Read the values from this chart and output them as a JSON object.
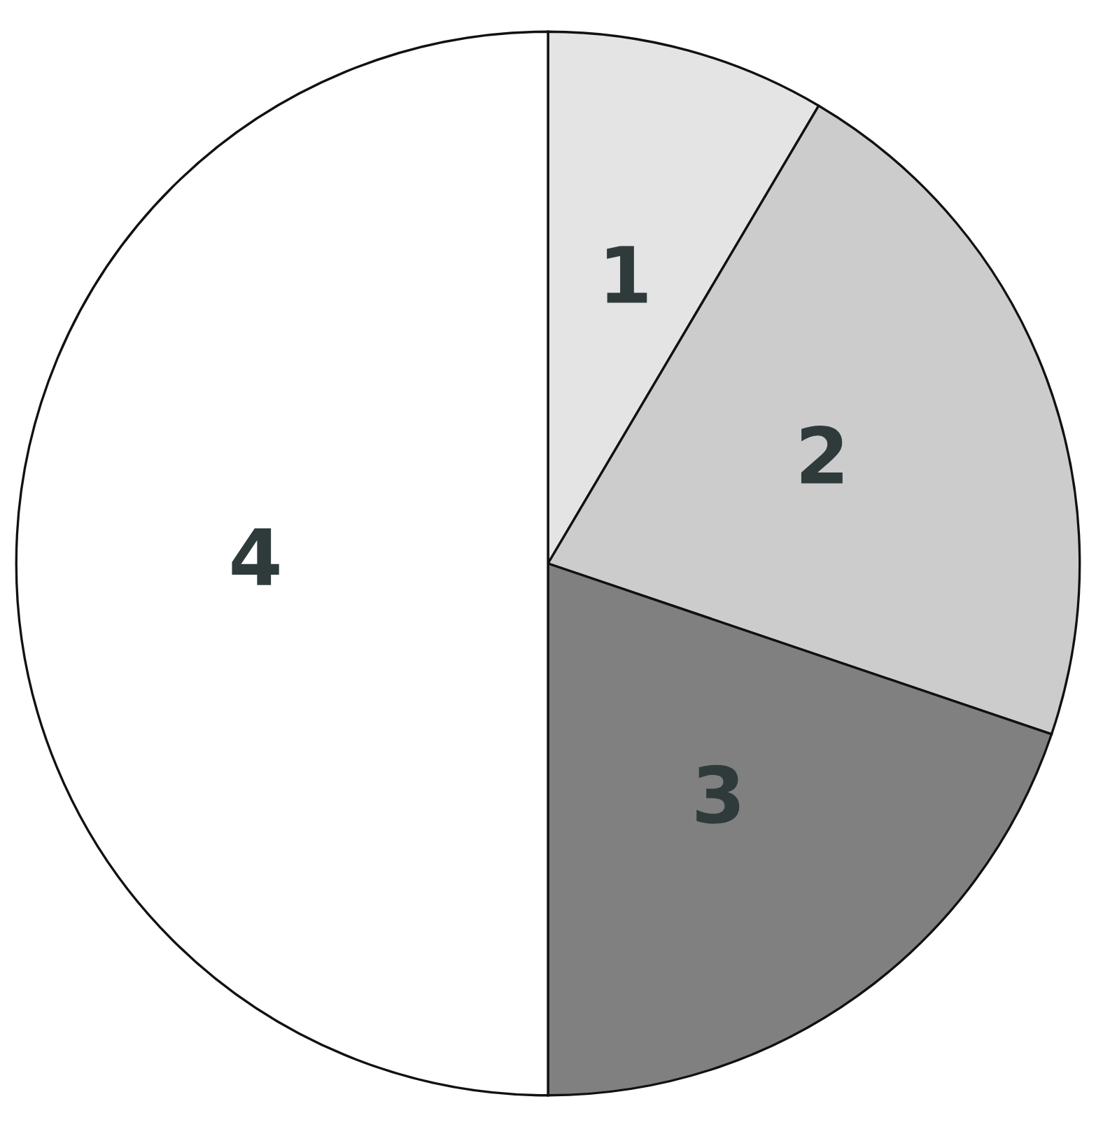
{
  "chart_data": {
    "type": "pie",
    "categories": [
      "1",
      "2",
      "3",
      "4"
    ],
    "values": [
      8.5,
      21.7,
      19.8,
      50
    ],
    "colors": [
      "#e4e4e4",
      "#cccccc",
      "#808080",
      "#ffffff"
    ]
  }
}
